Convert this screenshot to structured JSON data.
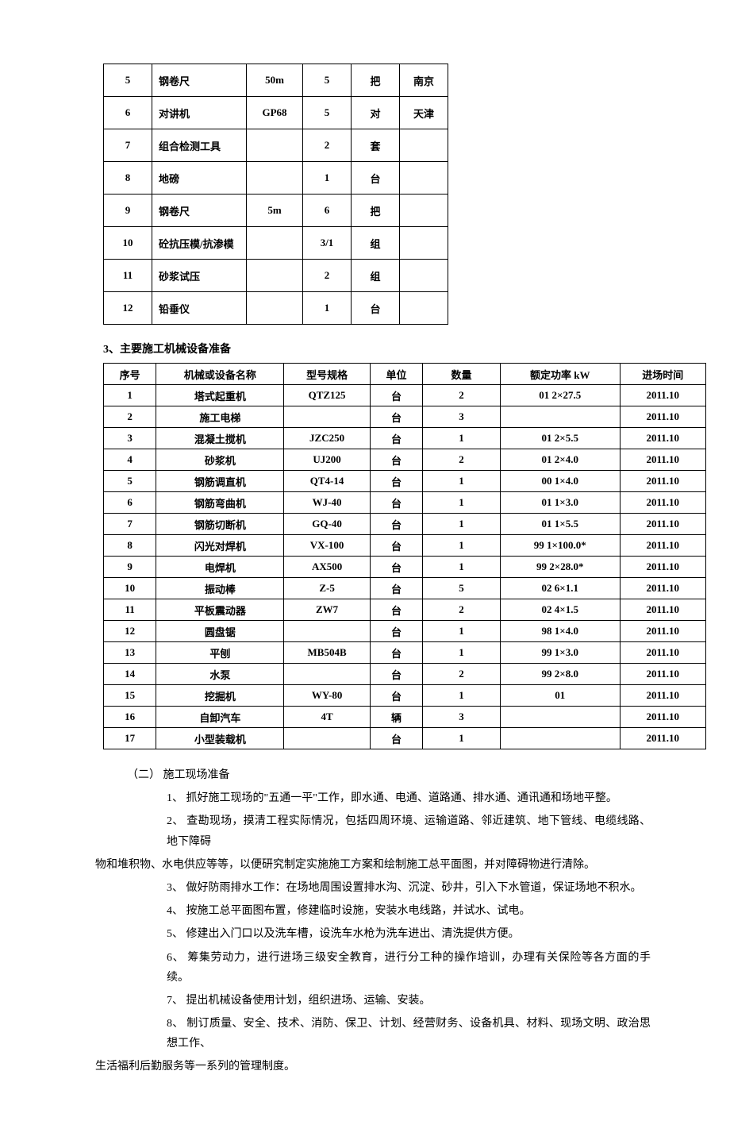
{
  "table1": {
    "rows": [
      {
        "seq": "5",
        "name": "钢卷尺",
        "spec": "50m",
        "qty": "5",
        "unit": "把",
        "loc": "南京"
      },
      {
        "seq": "6",
        "name": "对讲机",
        "spec": "GP68",
        "qty": "5",
        "unit": "对",
        "loc": "天津"
      },
      {
        "seq": "7",
        "name": "组合检测工具",
        "spec": "",
        "qty": "2",
        "unit": "套",
        "loc": ""
      },
      {
        "seq": "8",
        "name": "地磅",
        "spec": "",
        "qty": "1",
        "unit": "台",
        "loc": ""
      },
      {
        "seq": "9",
        "name": "钢卷尺",
        "spec": "5m",
        "qty": "6",
        "unit": "把",
        "loc": ""
      },
      {
        "seq": "10",
        "name": "砼抗压模/抗渗模",
        "spec": "",
        "qty": "3/1",
        "unit": "组",
        "loc": ""
      },
      {
        "seq": "11",
        "name": "砂浆试压",
        "spec": "",
        "qty": "2",
        "unit": "组",
        "loc": ""
      },
      {
        "seq": "12",
        "name": "铅垂仪",
        "spec": "",
        "qty": "1",
        "unit": "台",
        "loc": ""
      }
    ]
  },
  "section3_title": "3、主要施工机械设备准备",
  "table2": {
    "headers": {
      "seq": "序号",
      "name": "机械或设备名称",
      "spec": "型号规格",
      "unit": "单位",
      "qty": "数量",
      "power": "额定功率 kW",
      "time": "进场时间"
    },
    "rows": [
      {
        "seq": "1",
        "name": "塔式起重机",
        "spec": "QTZ125",
        "unit": "台",
        "qty": "2",
        "power": "01 2×27.5",
        "time": "2011.10"
      },
      {
        "seq": "2",
        "name": "施工电梯",
        "spec": "",
        "unit": "台",
        "qty": "3",
        "power": "",
        "time": "2011.10"
      },
      {
        "seq": "3",
        "name": "混凝土搅机",
        "spec": "JZC250",
        "unit": "台",
        "qty": "1",
        "power": "01 2×5.5",
        "time": "2011.10"
      },
      {
        "seq": "4",
        "name": "砂浆机",
        "spec": "UJ200",
        "unit": "台",
        "qty": "2",
        "power": "01 2×4.0",
        "time": "2011.10"
      },
      {
        "seq": "5",
        "name": "钢筋调直机",
        "spec": "QT4-14",
        "unit": "台",
        "qty": "1",
        "power": "00 1×4.0",
        "time": "2011.10"
      },
      {
        "seq": "6",
        "name": "钢筋弯曲机",
        "spec": "WJ-40",
        "unit": "台",
        "qty": "1",
        "power": "01 1×3.0",
        "time": "2011.10"
      },
      {
        "seq": "7",
        "name": "钢筋切断机",
        "spec": "GQ-40",
        "unit": "台",
        "qty": "1",
        "power": "01 1×5.5",
        "time": "2011.10"
      },
      {
        "seq": "8",
        "name": "闪光对焊机",
        "spec": "VX-100",
        "unit": "台",
        "qty": "1",
        "power": "99 1×100.0*",
        "time": "2011.10"
      },
      {
        "seq": "9",
        "name": "电焊机",
        "spec": "AX500",
        "unit": "台",
        "qty": "1",
        "power": "99 2×28.0*",
        "time": "2011.10"
      },
      {
        "seq": "10",
        "name": "振动棒",
        "spec": "Z-5",
        "unit": "台",
        "qty": "5",
        "power": "02 6×1.1",
        "time": "2011.10"
      },
      {
        "seq": "11",
        "name": "平板震动器",
        "spec": "ZW7",
        "unit": "台",
        "qty": "2",
        "power": "02 4×1.5",
        "time": "2011.10"
      },
      {
        "seq": "12",
        "name": "圆盘锯",
        "spec": "",
        "unit": "台",
        "qty": "1",
        "power": "98 1×4.0",
        "time": "2011.10"
      },
      {
        "seq": "13",
        "name": "平刨",
        "spec": "MB504B",
        "unit": "台",
        "qty": "1",
        "power": "99 1×3.0",
        "time": "2011.10"
      },
      {
        "seq": "14",
        "name": "水泵",
        "spec": "",
        "unit": "台",
        "qty": "2",
        "power": "99 2×8.0",
        "time": "2011.10"
      },
      {
        "seq": "15",
        "name": "挖掘机",
        "spec": "WY-80",
        "unit": "台",
        "qty": "1",
        "power": "01",
        "time": "2011.10"
      },
      {
        "seq": "16",
        "name": "自卸汽车",
        "spec": "4T",
        "unit": "辆",
        "qty": "3",
        "power": "",
        "time": "2011.10"
      },
      {
        "seq": "17",
        "name": "小型装载机",
        "spec": "",
        "unit": "台",
        "qty": "1",
        "power": "",
        "time": "2011.10"
      }
    ]
  },
  "section2_head": "（二）   施工现场准备",
  "paras": {
    "p1": "1、 抓好施工现场的\"五通一平\"工作，即水通、电通、道路通、排水通、通讯通和场地平整。",
    "p2a": "2、 查勘现场，摸清工程实际情况，包括四周环境、运输道路、邻近建筑、地下管线、电缆线路、地下障碍",
    "p2b": "物和堆积物、水电供应等等，以便研究制定实施施工方案和绘制施工总平面图，并对障碍物进行清除。",
    "p3": "3、 做好防雨排水工作：在场地周围设置排水沟、沉淀、砂井，引入下水管道，保证场地不积水。",
    "p4": "4、 按施工总平面图布置，修建临时设施，安装水电线路，并试水、试电。",
    "p5": "5、 修建出入门口以及洗车槽，设洗车水枪为洗车进出、清洗提供方便。",
    "p6": "6、 筹集劳动力，进行进场三级安全教育，进行分工种的操作培训，办理有关保险等各方面的手续。",
    "p7": "7、 提出机械设备使用计划，组织进场、运输、安装。",
    "p8a": "8、 制订质量、安全、技术、消防、保卫、计划、经营财务、设备机具、材料、现场文明、政治思想工作、",
    "p8b": "生活福利后勤服务等一系列的管理制度。"
  }
}
